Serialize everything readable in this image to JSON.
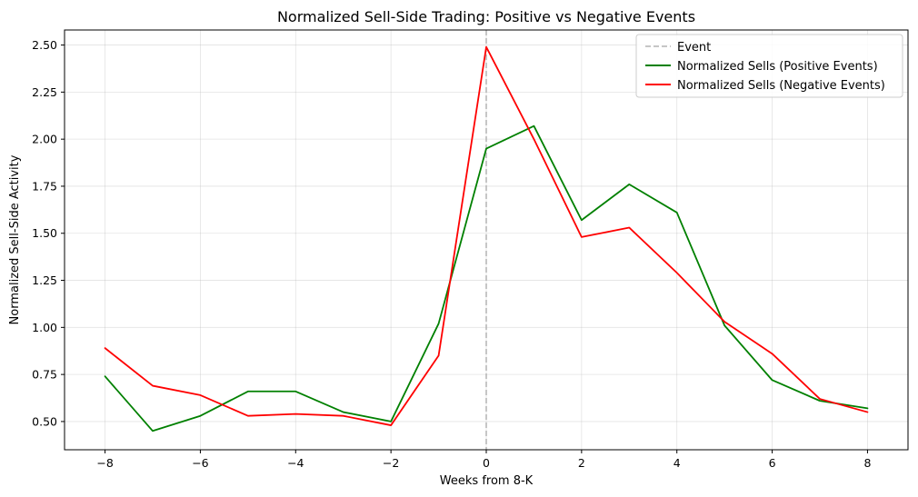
{
  "chart_data": {
    "type": "line",
    "title": "Normalized Sell-Side Trading: Positive vs Negative Events",
    "xlabel": "Weeks from 8-K",
    "ylabel": "Normalized Sell-Side Activity",
    "xlim": [
      -8.85,
      8.85
    ],
    "ylim": [
      0.35,
      2.58
    ],
    "x_ticks": [
      -8,
      -6,
      -4,
      -2,
      0,
      2,
      4,
      6,
      8
    ],
    "x_tick_labels": [
      "−8",
      "−6",
      "−4",
      "−2",
      "0",
      "2",
      "4",
      "6",
      "8"
    ],
    "y_ticks": [
      0.5,
      0.75,
      1.0,
      1.25,
      1.5,
      1.75,
      2.0,
      2.25,
      2.5
    ],
    "y_tick_labels": [
      "0.50",
      "0.75",
      "1.00",
      "1.25",
      "1.50",
      "1.75",
      "2.00",
      "2.25",
      "2.50"
    ],
    "grid": true,
    "legend_position": "top-right",
    "event_line": {
      "name": "Event",
      "x": 0,
      "color": "#b3b3b3",
      "style": "dashed"
    },
    "x": [
      -8,
      -7,
      -6,
      -5,
      -4,
      -3,
      -2,
      -1,
      0,
      1,
      2,
      3,
      4,
      5,
      6,
      7,
      8
    ],
    "series": [
      {
        "name": "Normalized Sells (Positive Events)",
        "color": "#008000",
        "values": [
          0.74,
          0.45,
          0.53,
          0.66,
          0.66,
          0.55,
          0.5,
          1.02,
          1.95,
          2.07,
          1.57,
          1.76,
          1.61,
          1.01,
          0.72,
          0.61,
          0.57
        ]
      },
      {
        "name": "Normalized Sells (Negative Events)",
        "color": "#ff0000",
        "values": [
          0.89,
          0.69,
          0.64,
          0.53,
          0.54,
          0.53,
          0.48,
          0.85,
          2.49,
          2.0,
          1.48,
          1.53,
          1.29,
          1.03,
          0.86,
          0.62,
          0.55
        ]
      }
    ]
  }
}
